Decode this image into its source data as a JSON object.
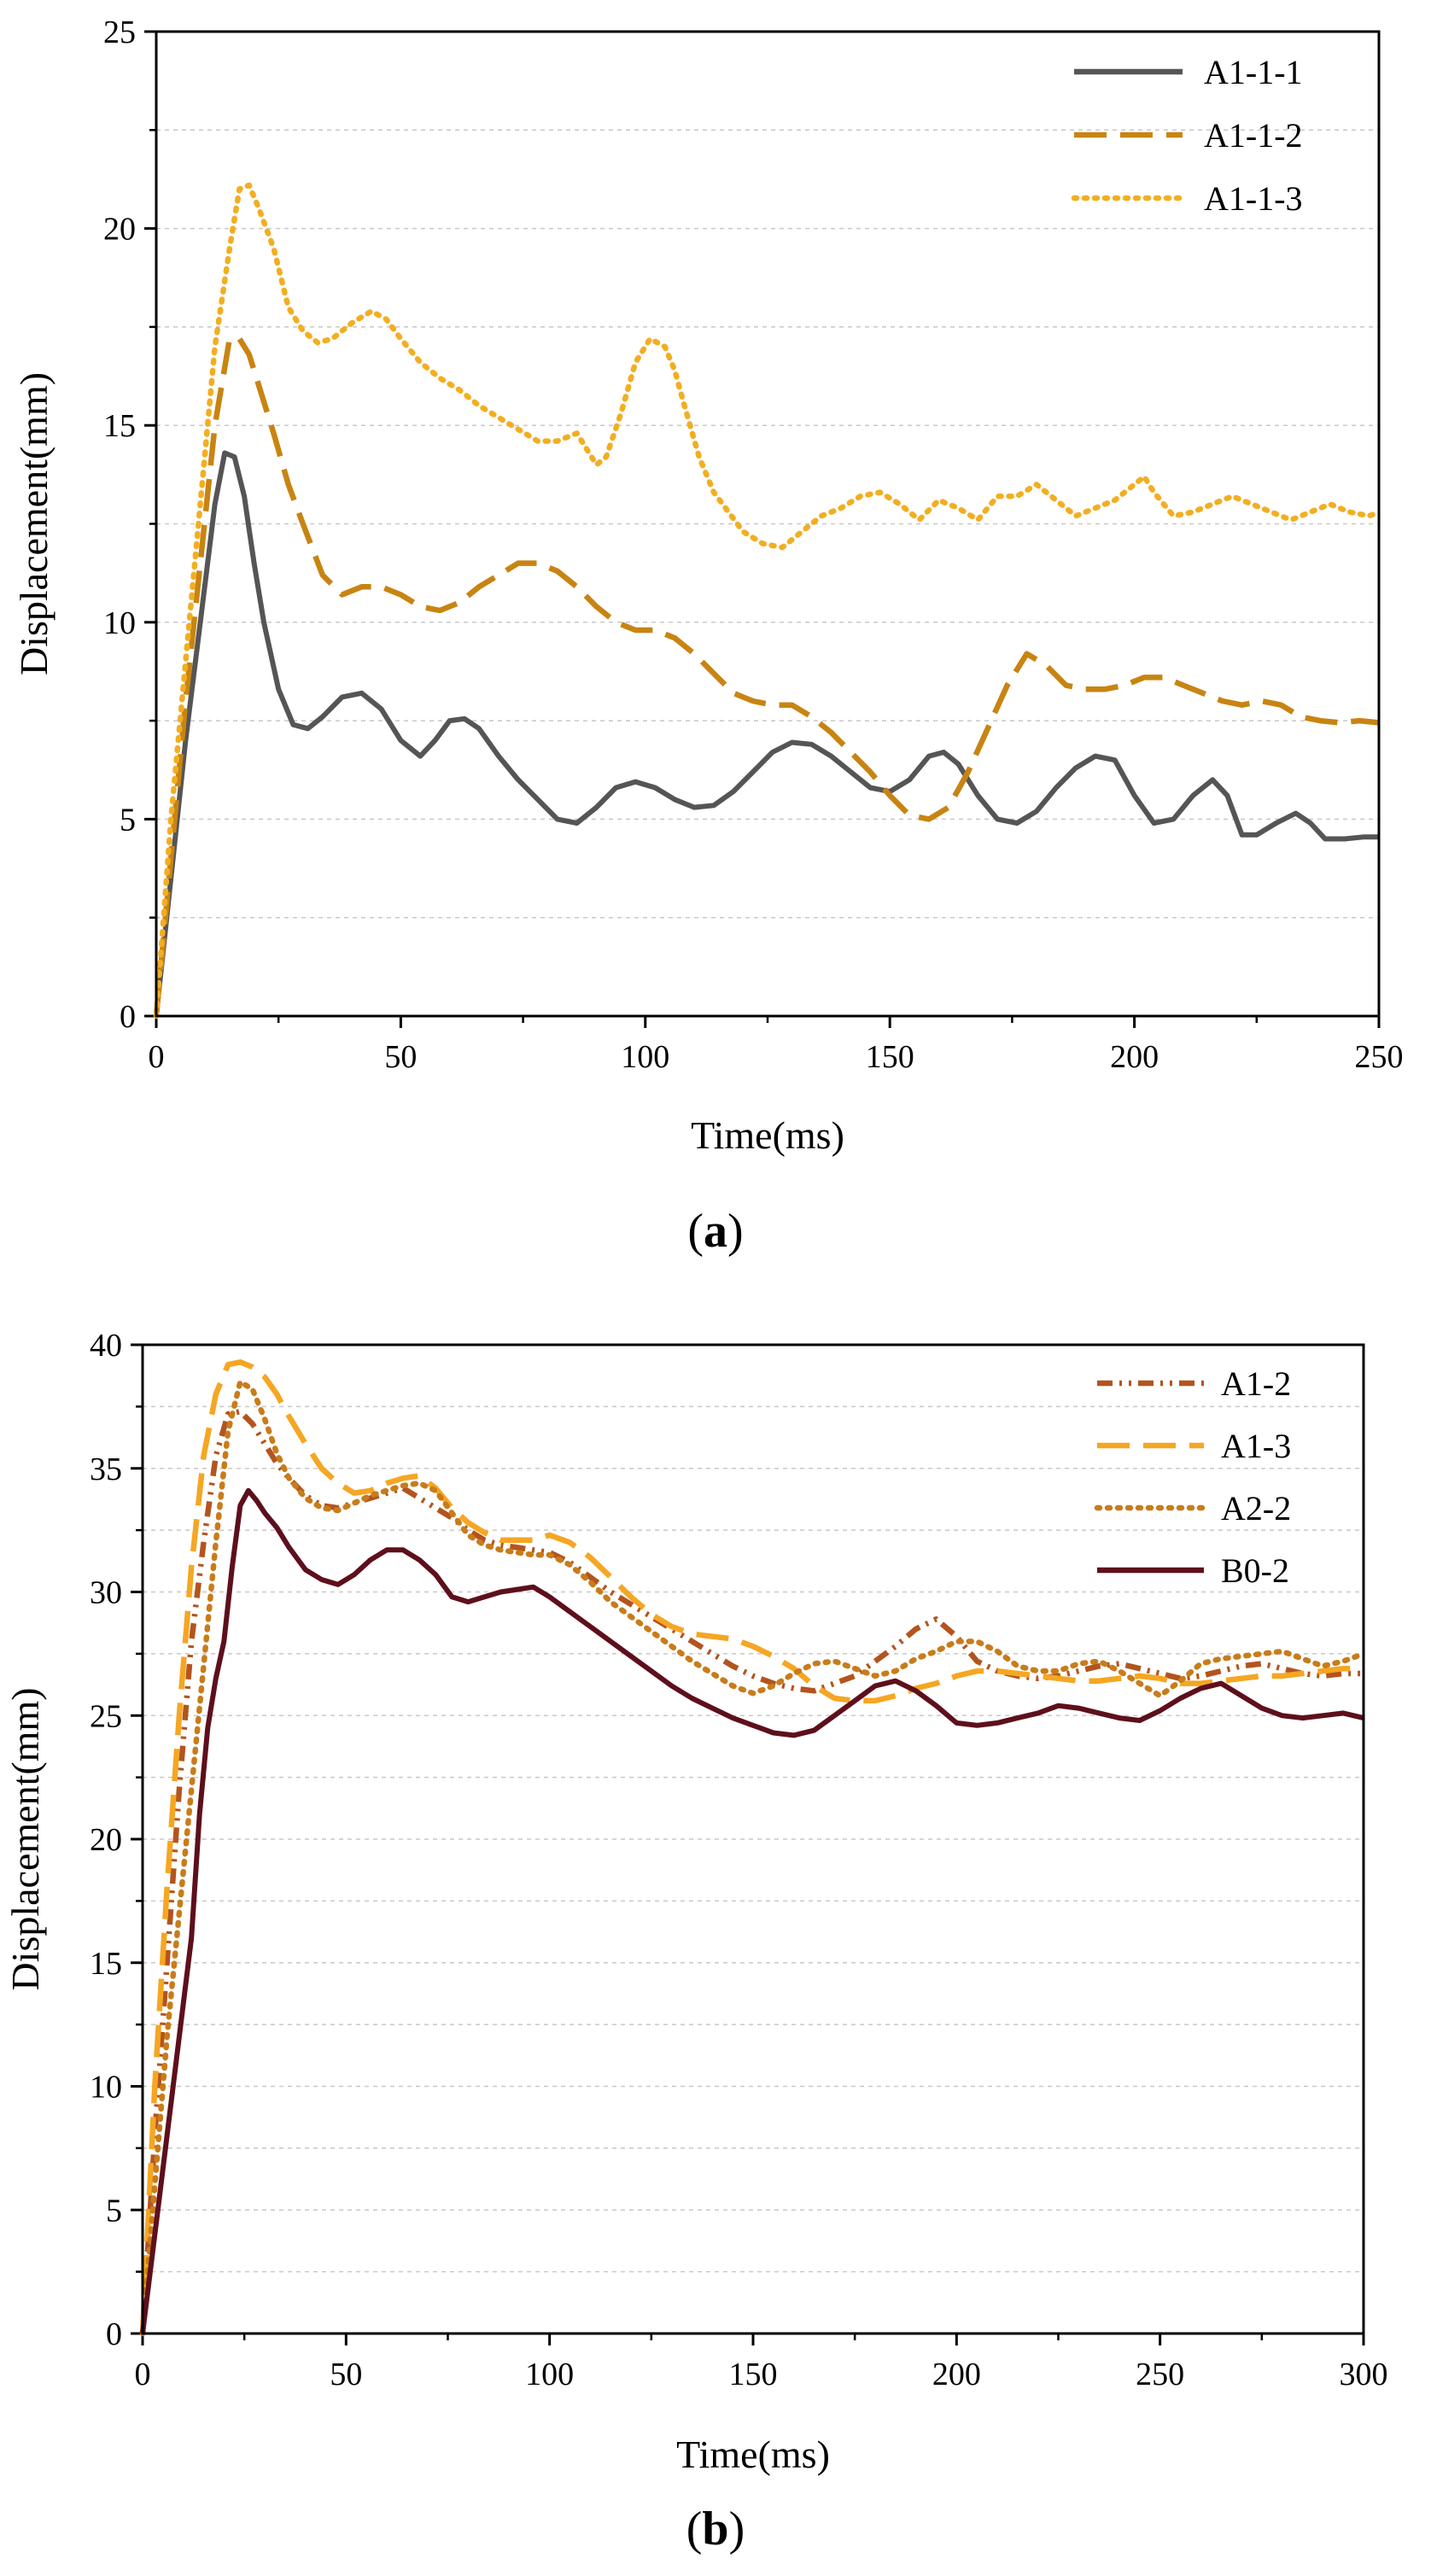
{
  "chart_data": [
    {
      "type": "line",
      "panel": "a",
      "caption_letter": "a",
      "xlabel": "Time(ms)",
      "ylabel": "Displacement(mm)",
      "xlim": [
        0,
        250
      ],
      "ylim": [
        0,
        25
      ],
      "xticks": [
        0,
        50,
        100,
        150,
        200,
        250
      ],
      "yticks": [
        0,
        5,
        10,
        15,
        20,
        25
      ],
      "grid": "horizontal dashed",
      "legend_position": "top-right",
      "series": [
        {
          "name": "A1-1-1",
          "color": "#555555",
          "dash": "solid",
          "x": [
            0,
            3,
            6,
            9,
            12,
            14,
            16,
            18,
            20,
            22,
            25,
            28,
            31,
            34,
            38,
            42,
            46,
            50,
            54,
            57,
            60,
            63,
            66,
            70,
            74,
            78,
            82,
            86,
            90,
            94,
            98,
            102,
            106,
            110,
            114,
            118,
            122,
            126,
            130,
            134,
            138,
            142,
            146,
            150,
            154,
            158,
            161,
            164,
            168,
            172,
            176,
            180,
            184,
            188,
            192,
            196,
            200,
            204,
            208,
            212,
            216,
            219,
            222,
            225,
            229,
            233,
            236,
            239,
            243,
            247,
            250
          ],
          "y": [
            0,
            3.5,
            7,
            10,
            13,
            14.3,
            14.2,
            13.2,
            11.5,
            10,
            8.3,
            7.4,
            7.3,
            7.6,
            8.1,
            8.2,
            7.8,
            7.0,
            6.6,
            7.0,
            7.5,
            7.55,
            7.3,
            6.6,
            6.0,
            5.5,
            5.0,
            4.9,
            5.3,
            5.8,
            5.95,
            5.8,
            5.5,
            5.3,
            5.35,
            5.7,
            6.2,
            6.7,
            6.95,
            6.9,
            6.6,
            6.2,
            5.8,
            5.7,
            6.0,
            6.6,
            6.7,
            6.4,
            5.6,
            5.0,
            4.9,
            5.2,
            5.8,
            6.3,
            6.6,
            6.5,
            5.6,
            4.9,
            5.0,
            5.6,
            6.0,
            5.6,
            4.6,
            4.6,
            4.9,
            5.15,
            4.9,
            4.5,
            4.5,
            4.55,
            4.55
          ]
        },
        {
          "name": "A1-1-2",
          "color": "#C88412",
          "dash": "long-dash",
          "x": [
            0,
            3,
            6,
            9,
            12,
            15,
            17,
            19,
            21,
            24,
            27,
            30,
            34,
            38,
            42,
            46,
            50,
            54,
            58,
            62,
            66,
            70,
            74,
            78,
            82,
            86,
            90,
            94,
            98,
            102,
            106,
            110,
            114,
            118,
            122,
            126,
            130,
            134,
            138,
            142,
            146,
            150,
            154,
            158,
            162,
            166,
            170,
            174,
            178,
            182,
            186,
            190,
            194,
            198,
            202,
            206,
            210,
            214,
            218,
            222,
            226,
            230,
            234,
            238,
            242,
            246,
            250
          ],
          "y": [
            0,
            4,
            8,
            11.5,
            15,
            17.2,
            17.2,
            16.8,
            16.0,
            14.8,
            13.5,
            12.5,
            11.2,
            10.7,
            10.9,
            10.9,
            10.7,
            10.4,
            10.3,
            10.5,
            10.9,
            11.2,
            11.5,
            11.5,
            11.3,
            10.9,
            10.4,
            10.0,
            9.8,
            9.8,
            9.6,
            9.2,
            8.7,
            8.2,
            8.0,
            7.9,
            7.9,
            7.6,
            7.2,
            6.7,
            6.2,
            5.6,
            5.1,
            5.0,
            5.3,
            6.2,
            7.3,
            8.4,
            9.2,
            8.9,
            8.4,
            8.3,
            8.3,
            8.4,
            8.6,
            8.6,
            8.4,
            8.2,
            8.0,
            7.9,
            8.0,
            7.9,
            7.6,
            7.5,
            7.45,
            7.5,
            7.45
          ]
        },
        {
          "name": "A1-1-3",
          "color": "#F2AE22",
          "dash": "dotted",
          "x": [
            0,
            3,
            6,
            9,
            12,
            15,
            17,
            19,
            21,
            24,
            27,
            30,
            33,
            36,
            40,
            44,
            47,
            50,
            54,
            58,
            62,
            66,
            70,
            74,
            78,
            82,
            86,
            88,
            90,
            92,
            95,
            98,
            101,
            104,
            106,
            108,
            111,
            114,
            117,
            120,
            124,
            128,
            132,
            136,
            140,
            144,
            148,
            152,
            156,
            160,
            164,
            168,
            172,
            176,
            180,
            184,
            188,
            192,
            196,
            200,
            202,
            204,
            208,
            212,
            216,
            220,
            224,
            228,
            232,
            236,
            240,
            244,
            248,
            250
          ],
          "y": [
            0,
            5,
            9,
            13,
            17,
            19.5,
            21,
            21.1,
            20.5,
            19.5,
            18,
            17.4,
            17.1,
            17.2,
            17.6,
            17.9,
            17.7,
            17.2,
            16.6,
            16.2,
            15.9,
            15.5,
            15.2,
            14.9,
            14.6,
            14.6,
            14.8,
            14.4,
            14.0,
            14.2,
            15.3,
            16.6,
            17.2,
            17.0,
            16.4,
            15.5,
            14.2,
            13.3,
            12.8,
            12.3,
            12.0,
            11.9,
            12.3,
            12.7,
            12.9,
            13.2,
            13.3,
            13.0,
            12.6,
            13.1,
            12.9,
            12.6,
            13.2,
            13.2,
            13.5,
            13.1,
            12.7,
            12.9,
            13.1,
            13.5,
            13.7,
            13.3,
            12.7,
            12.8,
            13.0,
            13.2,
            13.0,
            12.8,
            12.6,
            12.8,
            13.0,
            12.8,
            12.7,
            12.8
          ]
        }
      ]
    },
    {
      "type": "line",
      "panel": "b",
      "caption_letter": "b",
      "xlabel": "Time(ms)",
      "ylabel": "Displacement(mm)",
      "xlim": [
        0,
        300
      ],
      "ylim": [
        0,
        40
      ],
      "xticks": [
        0,
        50,
        100,
        150,
        200,
        250,
        300
      ],
      "yticks": [
        0,
        5,
        10,
        15,
        20,
        25,
        30,
        35,
        40
      ],
      "grid": "horizontal dashed",
      "legend_position": "top-right",
      "series": [
        {
          "name": "A1-2",
          "color": "#B3541E",
          "dash": "dash-dot-dot",
          "x": [
            0,
            3,
            6,
            9,
            12,
            15,
            18,
            21,
            24,
            27,
            30,
            33,
            36,
            40,
            44,
            48,
            52,
            56,
            60,
            64,
            68,
            72,
            76,
            80,
            84,
            88,
            92,
            96,
            100,
            105,
            110,
            115,
            120,
            125,
            130,
            135,
            140,
            145,
            150,
            155,
            160,
            165,
            170,
            175,
            180,
            185,
            190,
            195,
            200,
            205,
            210,
            215,
            220,
            225,
            230,
            235,
            240,
            245,
            250,
            255,
            260,
            265,
            270,
            275,
            280,
            285,
            290,
            295,
            300
          ],
          "y": [
            0,
            8,
            15,
            22,
            28,
            32,
            35.5,
            37.2,
            37.3,
            36.8,
            36.0,
            35.2,
            34.6,
            33.9,
            33.5,
            33.4,
            33.6,
            33.8,
            34.0,
            34.2,
            33.8,
            33.4,
            33.0,
            32.5,
            32.1,
            31.9,
            31.8,
            31.7,
            31.6,
            31.2,
            30.6,
            30.0,
            29.5,
            29.0,
            28.5,
            28.0,
            27.5,
            27.0,
            26.6,
            26.3,
            26.1,
            26.0,
            26.3,
            26.6,
            27.2,
            27.8,
            28.5,
            28.9,
            28.2,
            27.2,
            26.8,
            26.6,
            26.5,
            26.6,
            26.8,
            27.0,
            27.1,
            26.9,
            26.7,
            26.5,
            26.6,
            26.8,
            27.0,
            27.1,
            26.9,
            26.7,
            26.6,
            26.7,
            26.7
          ]
        },
        {
          "name": "A1-3",
          "color": "#F5A623",
          "dash": "long-dash",
          "x": [
            0,
            3,
            6,
            9,
            12,
            15,
            18,
            21,
            24,
            27,
            30,
            33,
            36,
            40,
            44,
            48,
            52,
            56,
            60,
            64,
            68,
            72,
            76,
            80,
            84,
            88,
            92,
            96,
            100,
            105,
            110,
            115,
            120,
            125,
            130,
            135,
            140,
            145,
            150,
            155,
            160,
            165,
            170,
            175,
            180,
            185,
            190,
            195,
            200,
            205,
            210,
            215,
            220,
            225,
            230,
            235,
            240,
            245,
            250,
            255,
            260,
            265,
            270,
            275,
            280,
            285,
            290,
            295,
            300
          ],
          "y": [
            0,
            10,
            18,
            25,
            31,
            35.5,
            38,
            39.2,
            39.3,
            39.1,
            38.7,
            38.0,
            37.1,
            36.0,
            35.0,
            34.4,
            34.0,
            34.1,
            34.4,
            34.6,
            34.7,
            34.2,
            33.4,
            32.8,
            32.4,
            32.1,
            32.1,
            32.1,
            32.3,
            32.0,
            31.4,
            30.6,
            29.8,
            29.1,
            28.6,
            28.3,
            28.2,
            28.1,
            27.8,
            27.4,
            26.9,
            26.2,
            25.7,
            25.6,
            25.6,
            25.8,
            26.1,
            26.3,
            26.6,
            26.8,
            26.8,
            26.7,
            26.6,
            26.5,
            26.4,
            26.4,
            26.5,
            26.6,
            26.5,
            26.3,
            26.3,
            26.4,
            26.5,
            26.6,
            26.6,
            26.7,
            26.8,
            26.9,
            26.9
          ]
        },
        {
          "name": "A2-2",
          "color": "#C87C1A",
          "dash": "dotted",
          "x": [
            0,
            3,
            6,
            9,
            12,
            15,
            18,
            21,
            24,
            27,
            30,
            33,
            36,
            40,
            44,
            48,
            52,
            56,
            60,
            64,
            68,
            72,
            76,
            80,
            84,
            88,
            92,
            96,
            100,
            105,
            110,
            115,
            120,
            125,
            130,
            135,
            140,
            145,
            150,
            155,
            160,
            165,
            170,
            175,
            180,
            185,
            190,
            195,
            200,
            205,
            210,
            215,
            220,
            225,
            230,
            235,
            240,
            245,
            250,
            255,
            260,
            265,
            270,
            275,
            280,
            285,
            290,
            295,
            300
          ],
          "y": [
            0,
            6,
            12,
            17,
            22,
            27,
            32,
            36.5,
            38.5,
            38.2,
            37.0,
            35.6,
            34.6,
            33.8,
            33.4,
            33.3,
            33.6,
            33.9,
            34.1,
            34.3,
            34.4,
            34.1,
            33.2,
            32.3,
            31.9,
            31.7,
            31.6,
            31.5,
            31.5,
            31.1,
            30.4,
            29.6,
            29.0,
            28.4,
            27.8,
            27.2,
            26.7,
            26.2,
            25.9,
            26.2,
            26.7,
            27.1,
            27.2,
            26.9,
            26.6,
            26.8,
            27.3,
            27.6,
            28.0,
            28.0,
            27.6,
            27.0,
            26.8,
            26.8,
            27.1,
            27.2,
            26.8,
            26.3,
            25.8,
            26.4,
            27.1,
            27.3,
            27.4,
            27.5,
            27.6,
            27.3,
            27.0,
            27.2,
            27.5
          ]
        },
        {
          "name": "B0-2",
          "color": "#5E0F1C",
          "dash": "solid",
          "x": [
            0,
            3,
            6,
            9,
            12,
            14,
            16,
            18,
            20,
            22,
            24,
            26,
            28,
            30,
            33,
            36,
            40,
            44,
            48,
            52,
            56,
            60,
            64,
            68,
            72,
            76,
            80,
            84,
            88,
            92,
            96,
            100,
            105,
            110,
            115,
            120,
            125,
            130,
            135,
            140,
            145,
            150,
            155,
            160,
            165,
            170,
            175,
            180,
            185,
            190,
            195,
            200,
            205,
            210,
            215,
            220,
            225,
            230,
            235,
            240,
            245,
            250,
            255,
            260,
            265,
            270,
            275,
            280,
            285,
            290,
            295,
            300
          ],
          "y": [
            0,
            4,
            8,
            12,
            16,
            21,
            24.5,
            26.5,
            28,
            31,
            33.5,
            34.1,
            33.7,
            33.2,
            32.6,
            31.8,
            30.9,
            30.5,
            30.3,
            30.7,
            31.3,
            31.7,
            31.7,
            31.3,
            30.7,
            29.8,
            29.6,
            29.8,
            30.0,
            30.1,
            30.2,
            29.8,
            29.2,
            28.6,
            28.0,
            27.4,
            26.8,
            26.2,
            25.7,
            25.3,
            24.9,
            24.6,
            24.3,
            24.2,
            24.4,
            25.0,
            25.6,
            26.2,
            26.4,
            26.0,
            25.4,
            24.7,
            24.6,
            24.7,
            24.9,
            25.1,
            25.4,
            25.3,
            25.1,
            24.9,
            24.8,
            25.2,
            25.7,
            26.1,
            26.3,
            25.8,
            25.3,
            25.0,
            24.9,
            25.0,
            25.1,
            24.9
          ]
        }
      ]
    }
  ]
}
